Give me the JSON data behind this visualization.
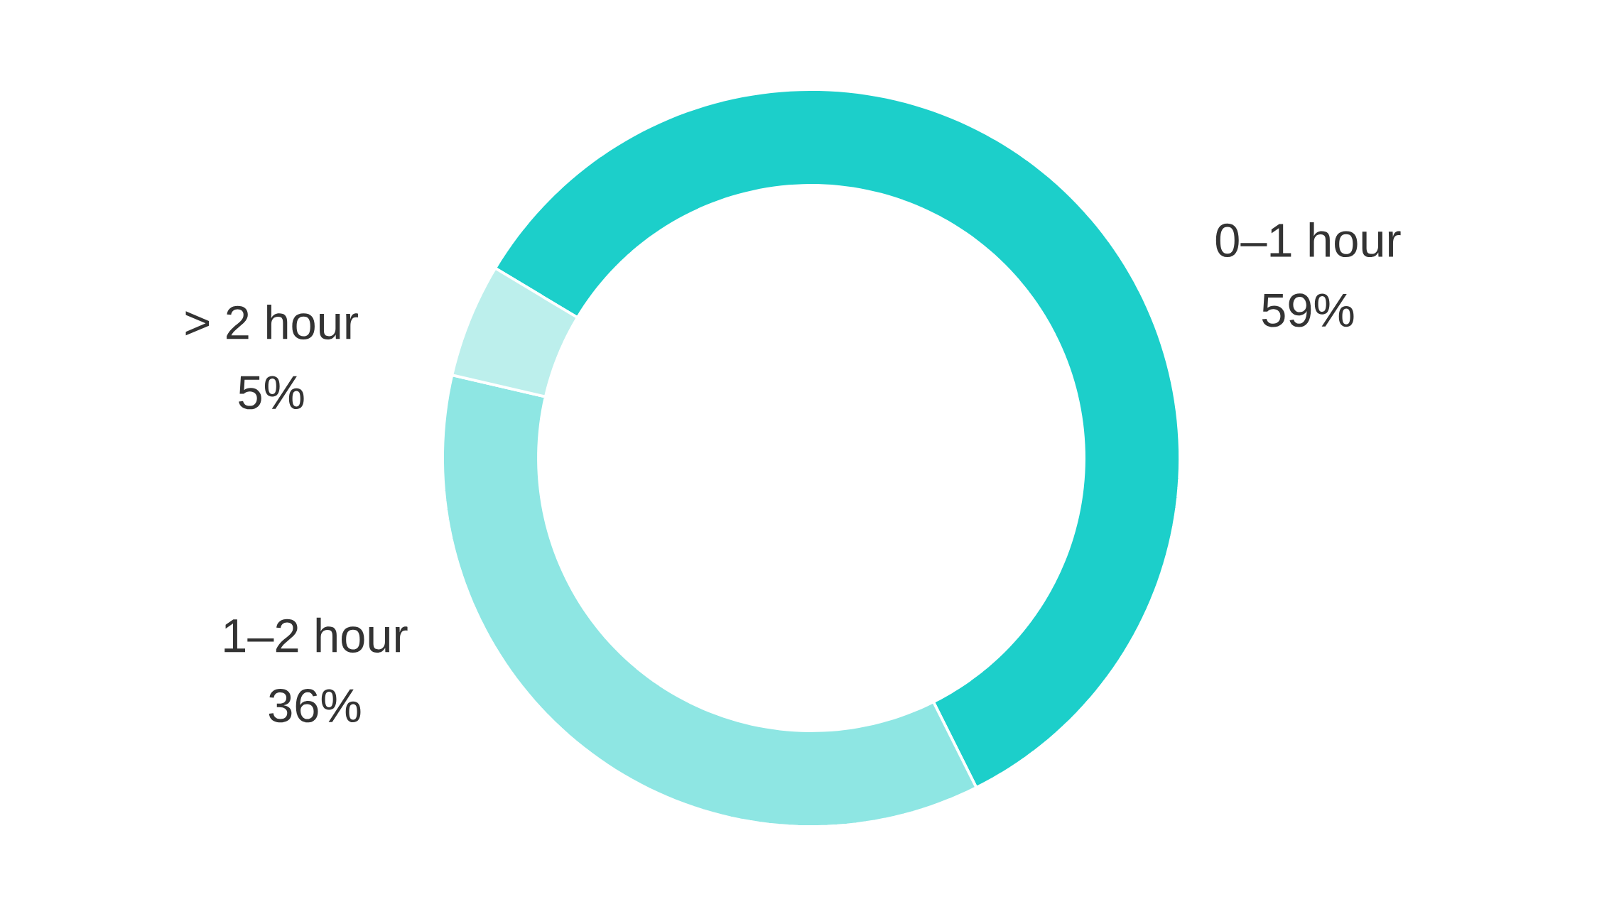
{
  "chart_data": {
    "type": "donut",
    "categories": [
      "0–1 hour",
      "1–2 hour",
      "> 2 hour"
    ],
    "values": [
      59,
      36,
      5
    ],
    "colors": [
      "#1ccfca",
      "#8ee6e3",
      "#bcefec"
    ],
    "value_labels": [
      "59%",
      "36%",
      "5%"
    ]
  }
}
